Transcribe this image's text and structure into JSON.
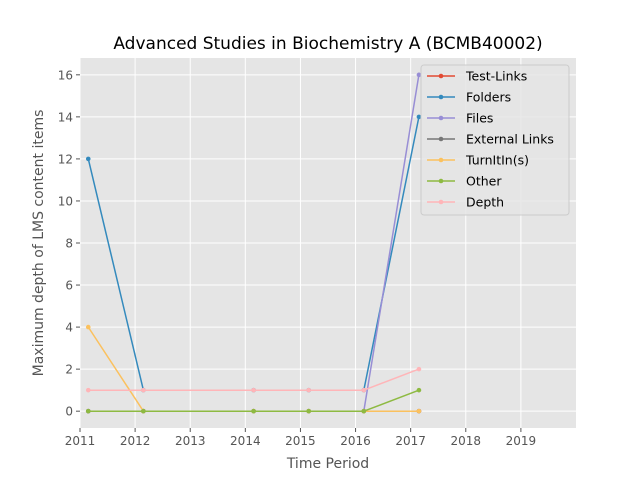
{
  "chart_data": {
    "type": "line",
    "title": "Advanced Studies in Biochemistry A (BCMB40002)",
    "xlabel": "Time Period",
    "ylabel": "Maximum depth of LMS content items",
    "xlim": [
      2011,
      2020
    ],
    "ylim": [
      -0.8,
      16.8
    ],
    "xticks": [
      2011,
      2012,
      2013,
      2014,
      2015,
      2016,
      2017,
      2018,
      2019
    ],
    "yticks": [
      0,
      2,
      4,
      6,
      8,
      10,
      12,
      14,
      16
    ],
    "grid": true,
    "legend_position": "top-right",
    "x": [
      2011.15,
      2012.15,
      2014.15,
      2015.15,
      2016.15,
      2017.15
    ],
    "series": [
      {
        "name": "Test-Links",
        "color": "#E24A33",
        "values": [
          0,
          0,
          0,
          0,
          0,
          0
        ]
      },
      {
        "name": "Folders",
        "color": "#348ABD",
        "values": [
          12,
          1,
          1,
          1,
          1,
          14
        ]
      },
      {
        "name": "Files",
        "color": "#988ED5",
        "values": [
          0,
          0,
          0,
          0,
          0,
          16
        ]
      },
      {
        "name": "External Links",
        "color": "#777777",
        "values": [
          0,
          0,
          0,
          0,
          0,
          0
        ]
      },
      {
        "name": "TurnItIn(s)",
        "color": "#FBC15E",
        "values": [
          4,
          0,
          0,
          0,
          0,
          0
        ]
      },
      {
        "name": "Other",
        "color": "#8EBA42",
        "values": [
          0,
          0,
          0,
          0,
          0,
          1
        ]
      },
      {
        "name": "Depth",
        "color": "#FFB5B8",
        "values": [
          1,
          1,
          1,
          1,
          1,
          2
        ]
      }
    ]
  }
}
